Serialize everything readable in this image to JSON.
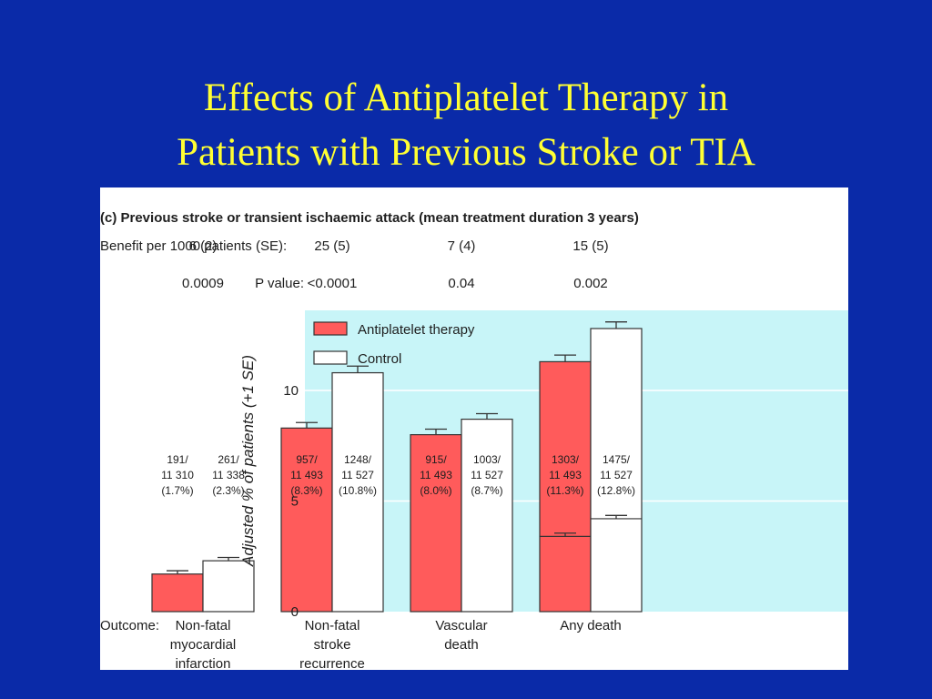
{
  "slide": {
    "title_line1": "Effects of Antiplatelet Therapy in",
    "title_line2": "Patients with Previous Stroke or TIA"
  },
  "colors": {
    "background": "#0a2aa8",
    "title": "#ffff33",
    "plot_background": "#c8f5f8",
    "antiplatelet": "#ff5b5b",
    "control": "#ffffff"
  },
  "chart_data": {
    "type": "bar",
    "title": "(c) Previous stroke or transient ischaemic attack (mean treatment duration 3 years)",
    "benefit_label": "Benefit per 1000 patients (SE):",
    "benefit_values": [
      "6 (2)",
      "25 (5)",
      "7 (4)",
      "15 (5)"
    ],
    "pvalue_label": "P value:",
    "pvalues": [
      "0.0009",
      "<0.0001",
      "0.04",
      "0.002"
    ],
    "ylabel": "Adjusted % of patients (+1 SE)",
    "xlabel": "Outcome:",
    "ylim": [
      0,
      13.5
    ],
    "yticks": [
      "0",
      "5",
      "10"
    ],
    "grid": true,
    "legend_position": "top-left",
    "categories": [
      [
        "Non-fatal",
        "myocardial",
        "infarction"
      ],
      [
        "Non-fatal",
        "stroke",
        "recurrence"
      ],
      [
        "Vascular",
        "death"
      ],
      [
        "Any death"
      ]
    ],
    "series": [
      {
        "name": "Antiplatelet therapy",
        "values": [
          1.7,
          8.3,
          8.0,
          11.3
        ],
        "se": [
          0.15,
          0.25,
          0.25,
          0.3
        ],
        "labels": [
          [
            "191/",
            "11 310",
            "(1.7%)"
          ],
          [
            "957/",
            "11 493",
            "(8.3%)"
          ],
          [
            "915/",
            "11 493",
            "(8.0%)"
          ],
          [
            "1303/",
            "11 493",
            "(11.3%)"
          ]
        ]
      },
      {
        "name": "Control",
        "values": [
          2.3,
          10.8,
          8.7,
          12.8
        ],
        "se": [
          0.15,
          0.3,
          0.25,
          0.3
        ],
        "labels": [
          [
            "261/",
            "11 338",
            "(2.3%)"
          ],
          [
            "1248/",
            "11 527",
            "(10.8%)"
          ],
          [
            "1003/",
            "11 527",
            "(8.7%)"
          ],
          [
            "1475/",
            "11 527",
            "(12.8%)"
          ]
        ]
      }
    ],
    "inner_segment": {
      "category_index": 3,
      "values": [
        3.4,
        4.2
      ],
      "se": [
        0.15,
        0.15
      ]
    }
  }
}
